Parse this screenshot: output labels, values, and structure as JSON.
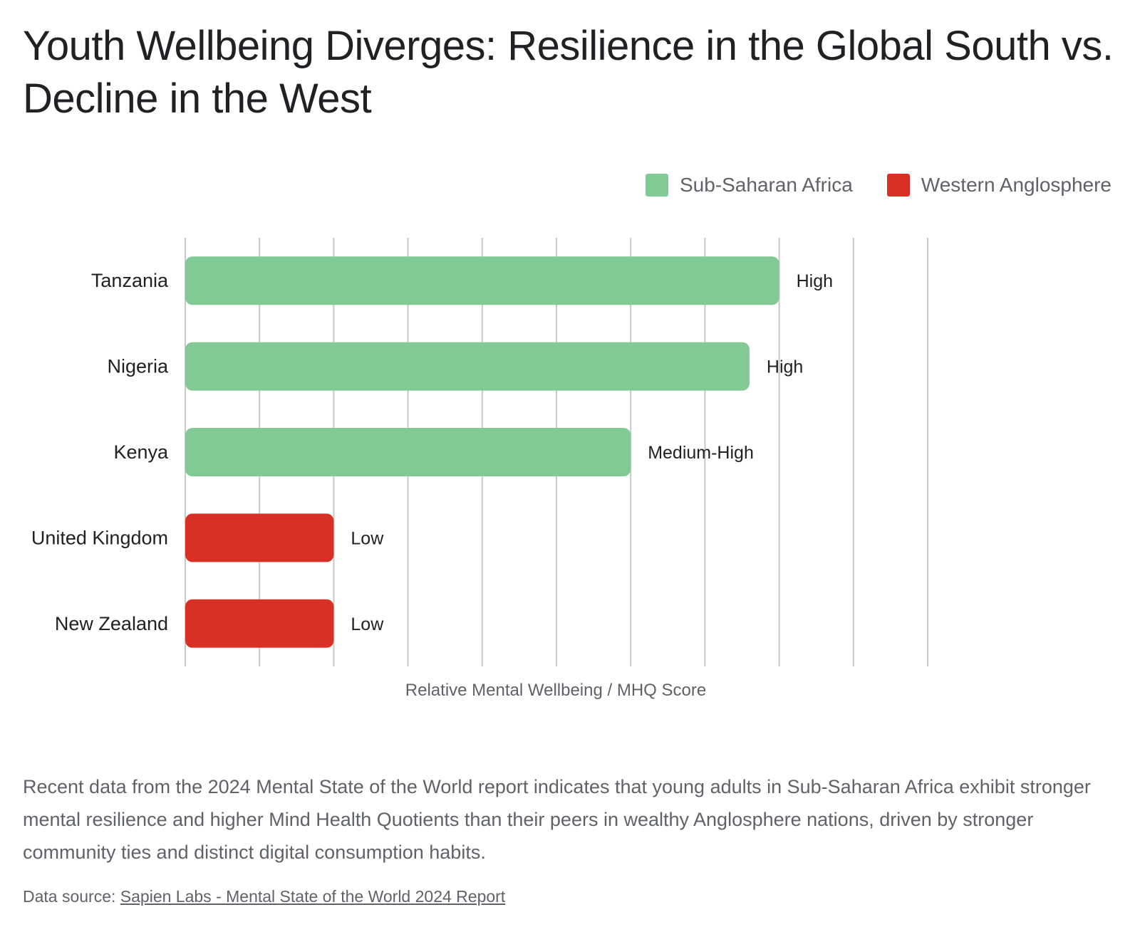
{
  "title": "Youth Wellbeing Diverges: Resilience in the Global South vs. Decline in the West",
  "legend": {
    "items": [
      {
        "label": "Sub-Saharan Africa",
        "color": "#81c995"
      },
      {
        "label": "Western Anglosphere",
        "color": "#d93025"
      }
    ]
  },
  "chart_data": {
    "type": "bar",
    "orientation": "horizontal",
    "categories": [
      "Tanzania",
      "Nigeria",
      "Kenya",
      "United Kingdom",
      "New Zealand"
    ],
    "values": [
      8,
      7.6,
      6,
      2,
      2
    ],
    "data_labels": [
      "High",
      "High",
      "Medium-High",
      "Low",
      "Low"
    ],
    "series_group": [
      "Sub-Saharan Africa",
      "Sub-Saharan Africa",
      "Sub-Saharan Africa",
      "Western Anglosphere",
      "Western Anglosphere"
    ],
    "colors": {
      "Sub-Saharan Africa": "#81c995",
      "Western Anglosphere": "#d93025"
    },
    "xlabel": "Relative Mental Wellbeing / MHQ Score",
    "ylabel": "",
    "xlim": [
      0,
      10
    ],
    "grid": true,
    "legend_position": "top-right"
  },
  "caption": "Recent data from the 2024 Mental State of the World report indicates that young adults in Sub-Saharan Africa exhibit stronger mental resilience and higher Mind Health Quotients than their peers in wealthy Anglosphere nations, driven by stronger community ties and distinct digital consumption habits.",
  "source": {
    "prefix": "Data source: ",
    "link_text": "Sapien Labs - Mental State of the World 2024 Report"
  }
}
